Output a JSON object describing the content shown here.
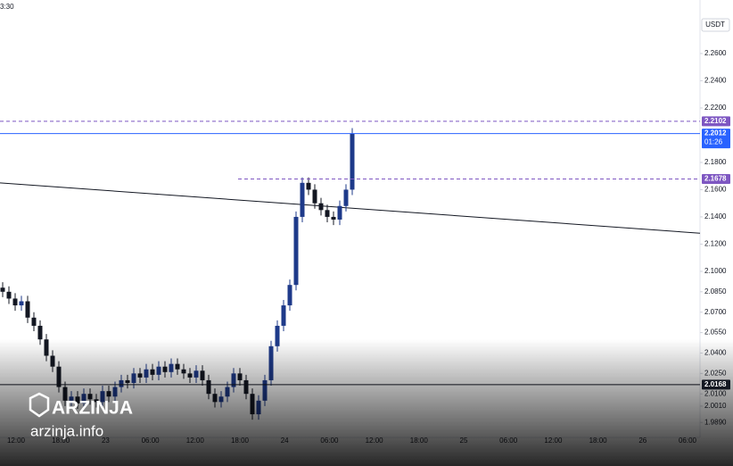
{
  "chart_data": {
    "type": "candlestick",
    "corner_text": "3:30",
    "currency": "USDT",
    "up_color": "#1e3a8a",
    "down_color": "#131722",
    "open": [
      2.088,
      2.085,
      2.08,
      2.075,
      2.078,
      2.066,
      2.06,
      2.05,
      2.038,
      2.03,
      2.015,
      2.005,
      2.008,
      2.003,
      2.01,
      2.006,
      2.004,
      2.012,
      2.008,
      2.015,
      2.02,
      2.018,
      2.025,
      2.022,
      2.028,
      2.024,
      2.03,
      2.026,
      2.032,
      2.028,
      2.025,
      2.022,
      2.027,
      2.02,
      2.01,
      2.004,
      2.008,
      2.015,
      2.025,
      2.02,
      2.01,
      1.995,
      2.005,
      2.02,
      2.045,
      2.06,
      2.075,
      2.09,
      2.14,
      2.165,
      2.16,
      2.15,
      2.145,
      2.14,
      2.138,
      2.148,
      2.16
    ],
    "high": [
      2.092,
      2.089,
      2.084,
      2.082,
      2.082,
      2.07,
      2.064,
      2.054,
      2.042,
      2.034,
      2.019,
      2.012,
      2.012,
      2.014,
      2.014,
      2.01,
      2.016,
      2.016,
      2.019,
      2.024,
      2.024,
      2.029,
      2.029,
      2.032,
      2.032,
      2.034,
      2.034,
      2.036,
      2.036,
      2.032,
      2.029,
      2.031,
      2.031,
      2.024,
      2.014,
      2.012,
      2.019,
      2.029,
      2.029,
      2.024,
      2.014,
      2.009,
      2.024,
      2.049,
      2.064,
      2.079,
      2.094,
      2.144,
      2.169,
      2.169,
      2.164,
      2.154,
      2.149,
      2.144,
      2.152,
      2.164,
      2.2052
    ],
    "low": [
      2.081,
      2.076,
      2.071,
      2.071,
      2.062,
      2.056,
      2.046,
      2.034,
      2.026,
      2.011,
      2.001,
      2.001,
      1.999,
      1.999,
      2.002,
      2.0,
      2.0,
      2.004,
      2.004,
      2.011,
      2.014,
      2.014,
      2.018,
      2.018,
      2.02,
      2.02,
      2.022,
      2.022,
      2.024,
      2.021,
      2.018,
      2.018,
      2.016,
      2.006,
      2.0,
      2.0,
      2.004,
      2.011,
      2.016,
      2.006,
      1.991,
      1.991,
      2.001,
      2.016,
      2.041,
      2.056,
      2.071,
      2.086,
      2.136,
      2.156,
      2.146,
      2.141,
      2.136,
      2.134,
      2.134,
      2.144,
      2.156
    ],
    "close": [
      2.085,
      2.08,
      2.075,
      2.078,
      2.066,
      2.06,
      2.05,
      2.038,
      2.03,
      2.015,
      2.005,
      2.008,
      2.003,
      2.01,
      2.006,
      2.004,
      2.012,
      2.008,
      2.015,
      2.02,
      2.018,
      2.025,
      2.022,
      2.028,
      2.024,
      2.03,
      2.026,
      2.032,
      2.028,
      2.025,
      2.022,
      2.027,
      2.02,
      2.01,
      2.004,
      2.008,
      2.015,
      2.025,
      2.02,
      2.01,
      1.995,
      2.005,
      2.02,
      2.045,
      2.06,
      2.075,
      2.09,
      2.14,
      2.165,
      2.16,
      2.15,
      2.145,
      2.14,
      2.138,
      2.148,
      2.16,
      2.2012
    ],
    "ylim": [
      1.978,
      2.2993
    ],
    "yticks": [
      {
        "value": 2.26,
        "label": "2.2600"
      },
      {
        "value": 2.24,
        "label": "2.2400"
      },
      {
        "value": 2.22,
        "label": "2.2200"
      },
      {
        "value": 2.18,
        "label": "2.1800"
      },
      {
        "value": 2.16,
        "label": "2.1600"
      },
      {
        "value": 2.14,
        "label": "2.1400"
      },
      {
        "value": 2.12,
        "label": "2.1200"
      },
      {
        "value": 2.1,
        "label": "2.1000"
      },
      {
        "value": 2.085,
        "label": "2.0850"
      },
      {
        "value": 2.07,
        "label": "2.0700"
      },
      {
        "value": 2.055,
        "label": "2.0550"
      },
      {
        "value": 2.04,
        "label": "2.0400"
      },
      {
        "value": 2.025,
        "label": "2.0250"
      },
      {
        "value": 2.01,
        "label": "2.0100"
      },
      {
        "value": 2.001,
        "label": "2.0010"
      },
      {
        "value": 1.989,
        "label": "1.9890"
      }
    ],
    "x_labels": [
      "12:00",
      "18:00",
      "23",
      "06:00",
      "12:00",
      "18:00",
      "24",
      "06:00",
      "12:00",
      "18:00",
      "25",
      "06:00",
      "12:00",
      "18:00",
      "26",
      "06:00"
    ],
    "price_lines": [
      {
        "value": 2.2102,
        "label": "2.2102",
        "color": "#7e57c2",
        "style": "dashed",
        "start": 0
      },
      {
        "value": 2.2012,
        "label": "2.2012",
        "color": "#2962ff",
        "style": "solid",
        "start": 0,
        "countdown": "01:26"
      },
      {
        "value": 2.1678,
        "label": "2.1678",
        "color": "#7e57c2",
        "style": "dashed",
        "start": 267
      },
      {
        "value": 2.0168,
        "label": "2.0168",
        "color": "#131722",
        "style": "solid",
        "start": 0
      }
    ],
    "trend_line": {
      "values": [
        2.165,
        2.128
      ],
      "color": "#131722"
    },
    "watermark": {
      "brand": "ARZINJA",
      "site": "arzinja.info"
    }
  }
}
